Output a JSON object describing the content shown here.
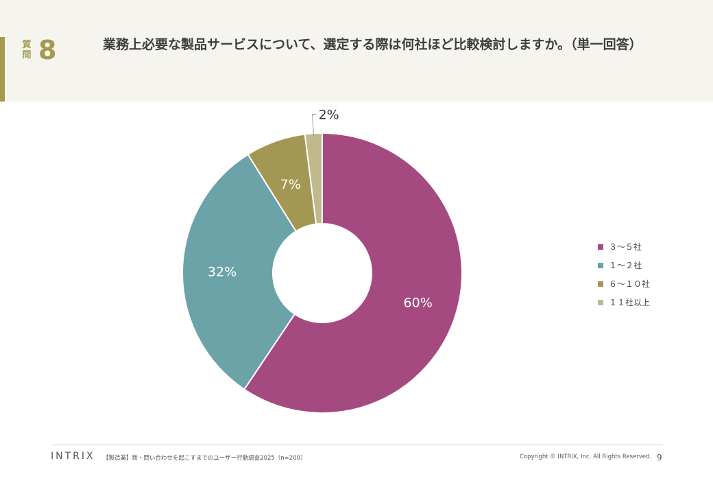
{
  "header": {
    "question_label": "質問",
    "question_number": "8",
    "question_text": "業務上必要な製品サービスについて、選定する際は何社ほど比較検討しますか。（単一回答）"
  },
  "chart_data": {
    "type": "pie",
    "donut": true,
    "title": "",
    "slices": [
      {
        "label": "３～５社",
        "value": 60,
        "display": "60%",
        "color": "#a54a80"
      },
      {
        "label": "１～２社",
        "value": 32,
        "display": "32%",
        "color": "#6ba3a8"
      },
      {
        "label": "６～１０社",
        "value": 7,
        "display": "7%",
        "color": "#a39754"
      },
      {
        "label": "１１社以上",
        "value": 2,
        "display": "2%",
        "color": "#bfb98b"
      }
    ],
    "legend_position": "right"
  },
  "footer": {
    "logo": "INTRIX",
    "source": "【製造業】新・問い合わせを起こすまでのユーザー行動調査2025（n=200）",
    "copyright": "Copyright © INTRIX, Inc. All Rights Reserved.",
    "page": "9"
  }
}
